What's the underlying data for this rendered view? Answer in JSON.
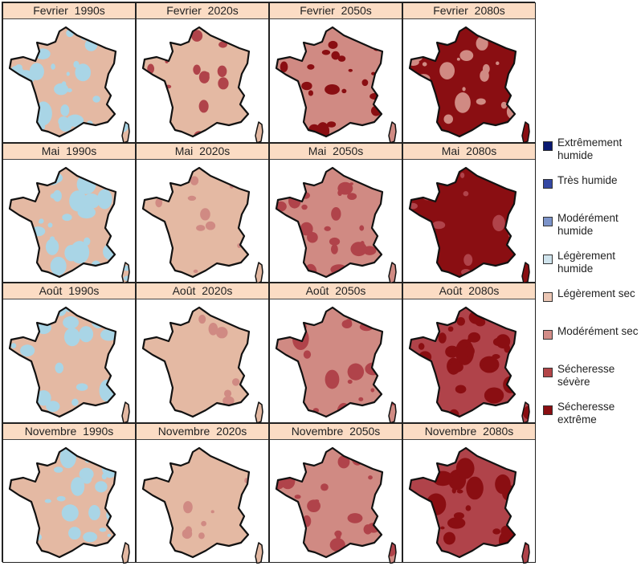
{
  "legend": [
    {
      "label": "Extrêmement humide",
      "color": "#0b1a72"
    },
    {
      "label": "Très humide",
      "color": "#3548a3"
    },
    {
      "label": "Modérément humide",
      "color": "#7c93c9"
    },
    {
      "label": "Légèrement humide",
      "color": "#cfe3ec"
    },
    {
      "label": "Légèrement sec",
      "color": "#ebc6b4"
    },
    {
      "label": "Modérément sec",
      "color": "#d38d88"
    },
    {
      "label": "Sécheresse sévère",
      "color": "#b34548"
    },
    {
      "label": "Sécheresse extrême",
      "color": "#8a0e12"
    }
  ],
  "map_colors": {
    "humid": "#a9d5e6",
    "light_dry": "#e4b9a3",
    "moderate_dry": "#d08a83",
    "severe": "#b0434a",
    "extreme": "#8a0e12"
  },
  "panels": [
    {
      "title": "Fevrier  1990s",
      "base": "light_dry",
      "spots": "humid",
      "density": 0.45
    },
    {
      "title": "Fevrier  2020s",
      "base": "light_dry",
      "spots": "severe",
      "density": 0.08
    },
    {
      "title": "Fevrier  2050s",
      "base": "moderate_dry",
      "spots": "extreme",
      "density": 0.3
    },
    {
      "title": "Fevrier  2080s",
      "base": "extreme",
      "spots": "moderate_dry",
      "density": 0.3
    },
    {
      "title": "Mai  1990s",
      "base": "light_dry",
      "spots": "humid",
      "density": 0.5
    },
    {
      "title": "Mai  2020s",
      "base": "light_dry",
      "spots": "moderate_dry",
      "density": 0.1
    },
    {
      "title": "Mai  2050s",
      "base": "moderate_dry",
      "spots": "severe",
      "density": 0.35
    },
    {
      "title": "Mai  2080s",
      "base": "extreme",
      "spots": "severe",
      "density": 0.15
    },
    {
      "title": "Août  1990s",
      "base": "light_dry",
      "spots": "humid",
      "density": 0.35
    },
    {
      "title": "Août  2020s",
      "base": "light_dry",
      "spots": "moderate_dry",
      "density": 0.1
    },
    {
      "title": "Août  2050s",
      "base": "moderate_dry",
      "spots": "severe",
      "density": 0.35
    },
    {
      "title": "Août  2080s",
      "base": "severe",
      "spots": "extreme",
      "density": 0.55
    },
    {
      "title": "Novembre  1990s",
      "base": "light_dry",
      "spots": "humid",
      "density": 0.35
    },
    {
      "title": "Novembre  2020s",
      "base": "light_dry",
      "spots": "moderate_dry",
      "density": 0.1
    },
    {
      "title": "Novembre  2050s",
      "base": "moderate_dry",
      "spots": "severe",
      "density": 0.35
    },
    {
      "title": "Novembre  2080s",
      "base": "severe",
      "spots": "extreme",
      "density": 0.5
    }
  ]
}
